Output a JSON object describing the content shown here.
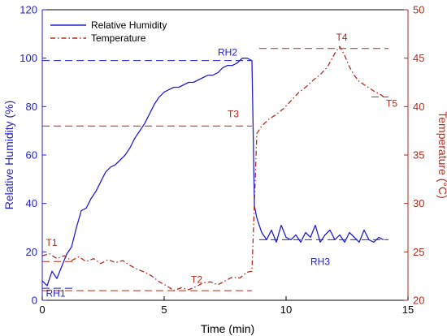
{
  "chart_data": {
    "type": "line",
    "xlabel": "Time (min)",
    "ylabel_left": "Relative Humidity (%)",
    "ylabel_right": "Temperature (°C)",
    "xlim": [
      0,
      15
    ],
    "ylim_left": [
      0,
      120
    ],
    "ylim_right": [
      20,
      50
    ],
    "x_ticks": [
      "0",
      "5",
      "10",
      "15"
    ],
    "y_left_ticks": [
      "0",
      "20",
      "40",
      "60",
      "80",
      "100",
      "120"
    ],
    "y_right_ticks": [
      "20",
      "25",
      "30",
      "35",
      "40",
      "45",
      "50"
    ],
    "grid": false,
    "legend_position": "top-left",
    "colors": {
      "humidity": "#2020d0",
      "temperature": "#b22a1a"
    },
    "series": [
      {
        "name": "Relative Humidity",
        "axis": "left",
        "style": "solid",
        "x": [
          0,
          0.2,
          0.4,
          0.6,
          0.8,
          1.0,
          1.2,
          1.4,
          1.6,
          1.8,
          2.0,
          2.2,
          2.4,
          2.6,
          2.8,
          3.0,
          3.2,
          3.4,
          3.6,
          3.8,
          4.0,
          4.2,
          4.4,
          4.6,
          4.8,
          5.0,
          5.2,
          5.4,
          5.6,
          5.8,
          6.0,
          6.2,
          6.4,
          6.6,
          6.8,
          7.0,
          7.2,
          7.4,
          7.6,
          7.8,
          8.0,
          8.2,
          8.4,
          8.6,
          8.65,
          8.7,
          8.8,
          9.0,
          9.2,
          9.4,
          9.6,
          9.8,
          10.0,
          10.2,
          10.4,
          10.6,
          10.8,
          11.0,
          11.2,
          11.4,
          11.6,
          11.8,
          12.0,
          12.2,
          12.4,
          12.6,
          12.8,
          13.0,
          13.2,
          13.4,
          13.6,
          13.8,
          14.0
        ],
        "values": [
          8,
          6,
          12,
          9,
          14,
          19,
          22,
          30,
          37,
          38,
          42,
          45,
          49,
          53,
          55,
          56,
          58,
          60,
          63,
          67,
          70,
          73,
          77,
          81,
          84,
          86,
          87,
          88,
          88,
          89,
          90,
          90,
          91,
          92,
          93,
          93,
          94,
          96,
          97,
          97,
          98,
          100,
          100,
          99,
          70,
          39,
          34,
          28,
          25,
          29,
          24,
          31,
          26,
          25,
          27,
          24,
          28,
          26,
          31,
          24,
          27,
          29,
          25,
          27,
          24,
          28,
          26,
          24,
          29,
          25,
          24,
          26,
          25
        ]
      },
      {
        "name": "Temperature",
        "axis": "right",
        "style": "dashdot",
        "x": [
          0,
          0.3,
          0.6,
          0.9,
          1.2,
          1.5,
          1.8,
          2.1,
          2.4,
          2.7,
          3.0,
          3.3,
          3.6,
          3.9,
          4.2,
          4.5,
          4.8,
          5.1,
          5.4,
          5.7,
          6.0,
          6.3,
          6.6,
          6.9,
          7.2,
          7.5,
          7.8,
          8.1,
          8.4,
          8.6,
          8.7,
          8.8,
          9.0,
          9.3,
          9.6,
          9.9,
          10.2,
          10.5,
          10.8,
          11.1,
          11.4,
          11.7,
          12.0,
          12.2,
          12.4,
          12.6,
          12.8,
          13.0,
          13.3,
          13.6,
          13.9,
          14.0
        ],
        "values": [
          24.6,
          24.8,
          24.3,
          24.6,
          24.1,
          24.5,
          24.0,
          24.3,
          23.8,
          24.2,
          23.9,
          24.1,
          23.6,
          23.2,
          22.9,
          22.5,
          21.9,
          21.5,
          21.0,
          21.3,
          21.1,
          21.4,
          21.8,
          21.9,
          21.6,
          22.0,
          22.4,
          22.3,
          22.9,
          23.0,
          30.0,
          37.2,
          38.0,
          38.7,
          39.2,
          39.8,
          40.6,
          41.4,
          42.0,
          42.7,
          43.3,
          44.1,
          45.5,
          46.2,
          45.3,
          44.1,
          43.2,
          42.6,
          42.1,
          41.6,
          41.2,
          41.0
        ]
      }
    ],
    "reference_lines": [
      {
        "label": "RH1",
        "axis": "left",
        "y": 5,
        "x_start": 0,
        "x_end": 1.4
      },
      {
        "label": "RH2",
        "axis": "left",
        "y": 99,
        "x_start": 0,
        "x_end": 8.6
      },
      {
        "label": "RH3",
        "axis": "left",
        "y": 25,
        "x_start": 8.9,
        "x_end": 14.2
      },
      {
        "label": "T1",
        "axis": "right",
        "y": 24,
        "x_start": 0,
        "x_end": 1.4
      },
      {
        "label": "T2",
        "axis": "right",
        "y": 21,
        "x_start": 0,
        "x_end": 8.6
      },
      {
        "label": "T3",
        "axis": "right",
        "y": 38,
        "x_start": 0,
        "x_end": 8.6
      },
      {
        "label": "T4",
        "axis": "right",
        "y": 46,
        "x_start": 8.9,
        "x_end": 14.2
      },
      {
        "label": "T5",
        "axis": "right",
        "y": 41,
        "x_start": 13.5,
        "x_end": 14.2
      }
    ],
    "annotations": [
      {
        "text": "RH1",
        "axis": "left",
        "x": 0.15,
        "y": 1.5,
        "color": "blue"
      },
      {
        "text": "RH2",
        "axis": "left",
        "x": 7.2,
        "y": 101,
        "color": "blue"
      },
      {
        "text": "RH3",
        "axis": "left",
        "x": 11.0,
        "y": 14.5,
        "color": "blue"
      },
      {
        "text": "T1",
        "axis": "right",
        "x": 0.15,
        "y": 25.6,
        "color": "red"
      },
      {
        "text": "T2",
        "axis": "right",
        "x": 6.1,
        "y": 21.8,
        "color": "red"
      },
      {
        "text": "T3",
        "axis": "right",
        "x": 7.6,
        "y": 38.9,
        "color": "red"
      },
      {
        "text": "T4",
        "axis": "right",
        "x": 12.05,
        "y": 46.8,
        "color": "red"
      },
      {
        "text": "T5",
        "axis": "right",
        "x": 14.1,
        "y": 40.0,
        "color": "red"
      }
    ]
  }
}
